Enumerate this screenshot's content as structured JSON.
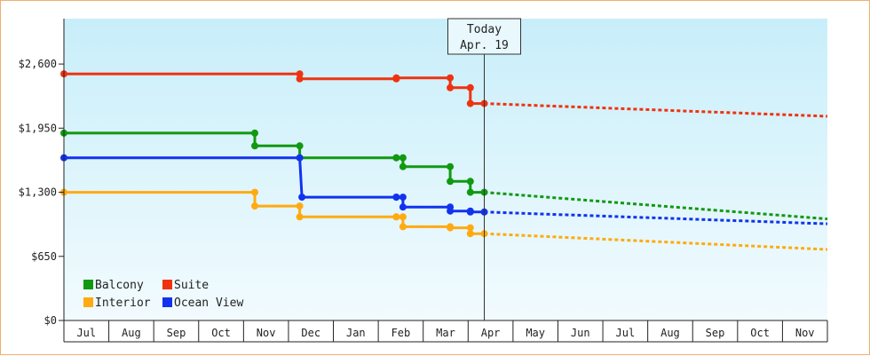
{
  "chart_data": {
    "type": "line",
    "y_ticks": [
      "$0",
      "$650",
      "$1,300",
      "$1,950",
      "$2,600"
    ],
    "y_values": [
      0,
      650,
      1300,
      1950,
      2600
    ],
    "ylim": [
      0,
      3060
    ],
    "x_labels": [
      "Jul",
      "Aug",
      "Sep",
      "Oct",
      "Nov",
      "Dec",
      "Jan",
      "Feb",
      "Mar",
      "Apr",
      "May",
      "Jun",
      "Jul",
      "Aug",
      "Sep",
      "Oct",
      "Nov"
    ],
    "today_label": "Today",
    "today_date": "Apr. 19",
    "today_month_index": 9.36,
    "grid": false,
    "legend_position": "bottom-left",
    "series": [
      {
        "name": "Balcony",
        "color": "#119911",
        "actual": [
          [
            0,
            1900
          ],
          [
            4.25,
            1900
          ],
          [
            4.25,
            1770
          ],
          [
            5.25,
            1770
          ],
          [
            5.25,
            1650
          ],
          [
            7.4,
            1650
          ],
          [
            7.4,
            1650
          ],
          [
            7.55,
            1650
          ],
          [
            7.55,
            1560
          ],
          [
            8.6,
            1560
          ],
          [
            8.6,
            1410
          ],
          [
            9.05,
            1410
          ],
          [
            9.05,
            1300
          ],
          [
            9.36,
            1300
          ]
        ],
        "projected": [
          [
            9.36,
            1300
          ],
          [
            17,
            1030
          ]
        ]
      },
      {
        "name": "Suite",
        "color": "#ee3311",
        "actual": [
          [
            0,
            2500
          ],
          [
            5.25,
            2500
          ],
          [
            5.25,
            2450
          ],
          [
            7.4,
            2450
          ],
          [
            7.4,
            2460
          ],
          [
            8.6,
            2460
          ],
          [
            8.6,
            2360
          ],
          [
            9.05,
            2360
          ],
          [
            9.05,
            2200
          ],
          [
            9.36,
            2200
          ]
        ],
        "projected": [
          [
            9.36,
            2200
          ],
          [
            17,
            2070
          ]
        ]
      },
      {
        "name": "Interior",
        "color": "#ffaa11",
        "actual": [
          [
            0,
            1300
          ],
          [
            4.25,
            1300
          ],
          [
            4.25,
            1160
          ],
          [
            5.25,
            1160
          ],
          [
            5.25,
            1050
          ],
          [
            7.4,
            1050
          ],
          [
            7.4,
            1050
          ],
          [
            7.55,
            1050
          ],
          [
            7.55,
            950
          ],
          [
            8.6,
            950
          ],
          [
            8.6,
            940
          ],
          [
            9.05,
            940
          ],
          [
            9.05,
            880
          ],
          [
            9.36,
            880
          ]
        ],
        "projected": [
          [
            9.36,
            880
          ],
          [
            17,
            720
          ]
        ]
      },
      {
        "name": "Ocean View",
        "color": "#1133ee",
        "actual": [
          [
            0,
            1650
          ],
          [
            5.25,
            1650
          ],
          [
            5.3,
            1250
          ],
          [
            7.4,
            1250
          ],
          [
            7.4,
            1250
          ],
          [
            7.55,
            1250
          ],
          [
            7.55,
            1150
          ],
          [
            8.6,
            1150
          ],
          [
            8.6,
            1110
          ],
          [
            9.05,
            1110
          ],
          [
            9.05,
            1100
          ],
          [
            9.36,
            1100
          ]
        ],
        "projected": [
          [
            9.36,
            1100
          ],
          [
            17,
            980
          ]
        ]
      }
    ]
  }
}
